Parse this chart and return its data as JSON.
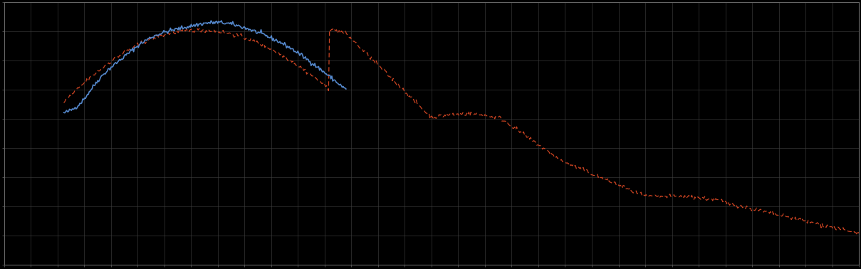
{
  "background_color": "#000000",
  "plot_bg_color": "#000000",
  "grid_color": "#404040",
  "line1_color": "#5588cc",
  "line2_color": "#cc4422",
  "figsize": [
    12.09,
    3.78
  ],
  "dpi": 100,
  "spine_color": "#666666",
  "tick_color": "#666666",
  "grid_alpha": 0.7,
  "nx_grid": 32,
  "ny_grid": 9
}
